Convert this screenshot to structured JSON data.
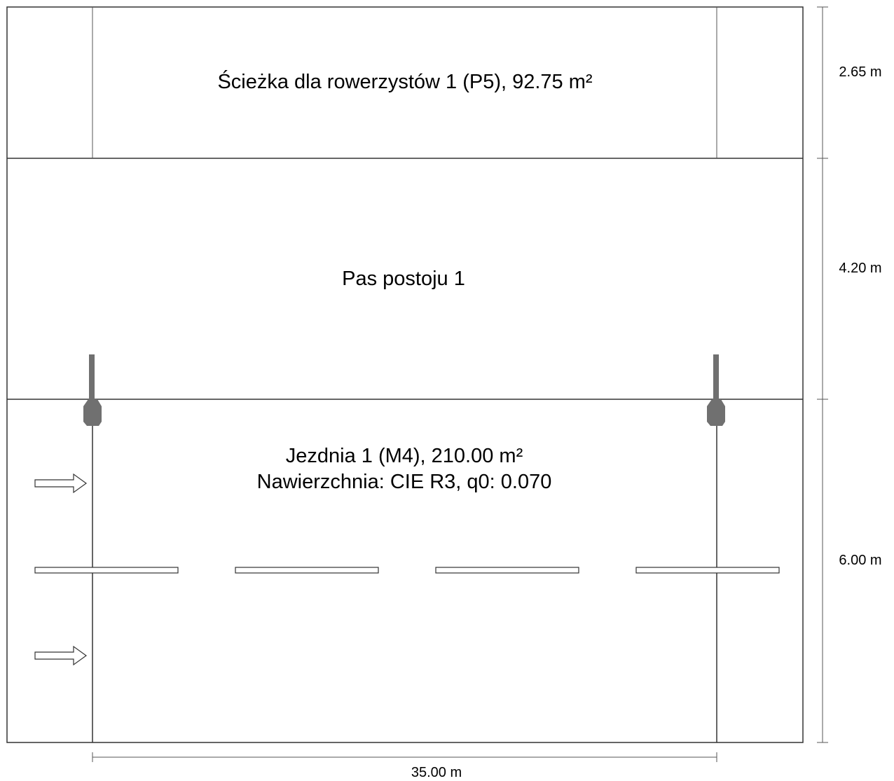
{
  "zones": {
    "bike_path": {
      "label": "Ścieżka dla rowerzystów 1 (P5), 92.75 m²"
    },
    "parking_lane": {
      "label": "Pas postoju 1"
    },
    "roadway": {
      "label_line1": "Jezdnia 1 (M4), 210.00 m²",
      "label_line2": "Nawierzchnia: CIE R3, q0: 0.070"
    }
  },
  "dimensions": {
    "bike_path_width": "2.65 m",
    "parking_lane_width": "4.20 m",
    "roadway_width": "6.00 m",
    "pole_spacing": "35.00 m"
  },
  "colors": {
    "line": "#333333",
    "luminaire": "#707070"
  },
  "icons": {
    "luminaire": "luminaire-icon",
    "traffic_direction": "arrow-right-icon"
  }
}
